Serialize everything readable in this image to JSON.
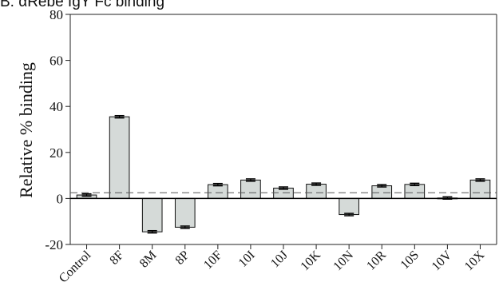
{
  "chart_data": {
    "type": "bar",
    "title": "B. αRebe IgY Fc binding",
    "xlabel": "",
    "ylabel": "Relative % binding",
    "ylim": [
      -20,
      80
    ],
    "yticks": [
      -20,
      0,
      20,
      40,
      60,
      80
    ],
    "categories": [
      "Control",
      "8F",
      "8M",
      "8P",
      "10F",
      "10I",
      "10J",
      "10K",
      "10N",
      "10R",
      "10S",
      "10V",
      "10X"
    ],
    "values": [
      1.5,
      35.5,
      -14.5,
      -12.5,
      6,
      8,
      4.5,
      6.2,
      -7,
      5.5,
      6.1,
      0.2,
      8
    ],
    "errors": [
      0.5,
      0.5,
      0.5,
      0.5,
      0.5,
      0.5,
      0.5,
      0.5,
      0.5,
      0.5,
      0.5,
      0.5,
      0.5
    ],
    "reference_line": 2.5,
    "bar_color": "#d5dad8",
    "grid": false,
    "legend": "none"
  }
}
